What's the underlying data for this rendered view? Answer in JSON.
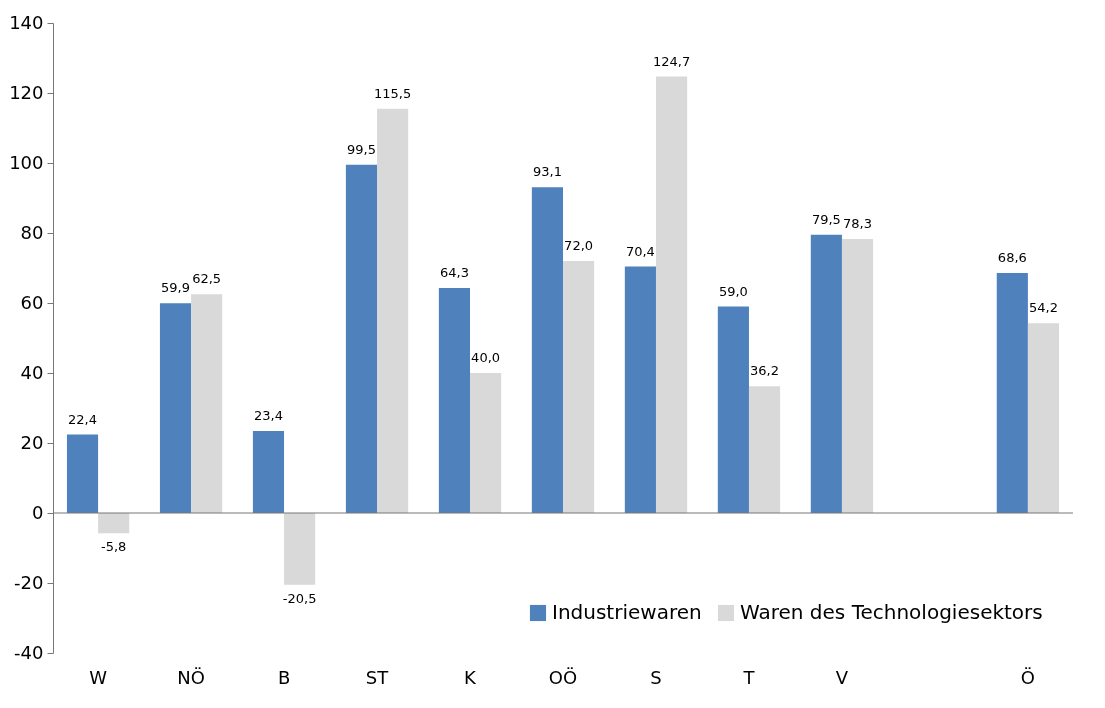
{
  "chart_data": {
    "type": "bar",
    "categories": [
      "W",
      "NÖ",
      "B",
      "ST",
      "K",
      "OÖ",
      "S",
      "T",
      "V",
      null,
      "Ö"
    ],
    "series": [
      {
        "name": "Industriewaren",
        "color": "#4f81bd",
        "values": [
          22.4,
          59.9,
          23.4,
          99.5,
          64.3,
          93.1,
          70.4,
          59.0,
          79.5,
          null,
          68.6
        ],
        "value_labels": [
          "22,4",
          "59,9",
          "23,4",
          "99,5",
          "64,3",
          "93,1",
          "70,4",
          "59,0",
          "79,5",
          null,
          "68,6"
        ]
      },
      {
        "name": "Waren des Technologiesektors",
        "color": "#d9d9d9",
        "values": [
          -5.8,
          62.5,
          -20.5,
          115.5,
          40.0,
          72.0,
          124.7,
          36.2,
          78.3,
          null,
          54.2
        ],
        "value_labels": [
          "-5,8",
          "62,5",
          "-20,5",
          "115,5",
          "40,0",
          "72,0",
          "124,7",
          "36,2",
          "78,3",
          null,
          "54,2"
        ]
      }
    ],
    "ylim": [
      -40,
      140
    ],
    "yticks": [
      -40,
      -20,
      0,
      20,
      40,
      60,
      80,
      100,
      120,
      140
    ],
    "legend": "bottom right"
  }
}
